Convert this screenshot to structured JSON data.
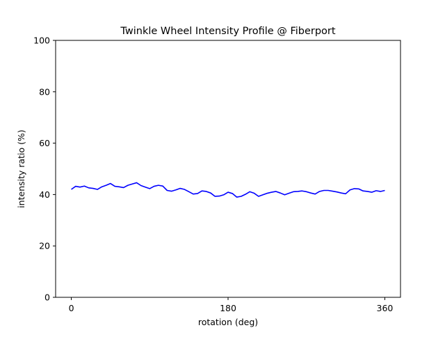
{
  "chart_data": {
    "type": "line",
    "title": "Twinkle Wheel Intensity Profile @ Fiberport",
    "xlabel": "rotation (deg)",
    "ylabel": "intensity ratio (%)",
    "xlim": [
      -18,
      378
    ],
    "ylim": [
      0,
      100
    ],
    "xticks": [
      0,
      180,
      360
    ],
    "xtick_labels": [
      "0",
      "180",
      "360"
    ],
    "yticks": [
      0,
      20,
      40,
      60,
      80,
      100
    ],
    "ytick_labels": [
      "0",
      "20",
      "40",
      "60",
      "80",
      "100"
    ],
    "grid": false,
    "series": [
      {
        "name": "intensity",
        "color": "#0000ff",
        "x": [
          0,
          5,
          10,
          15,
          20,
          25,
          30,
          35,
          40,
          45,
          50,
          55,
          60,
          65,
          70,
          75,
          80,
          85,
          90,
          95,
          100,
          105,
          110,
          115,
          120,
          125,
          130,
          135,
          140,
          145,
          150,
          155,
          160,
          165,
          170,
          175,
          180,
          185,
          190,
          195,
          200,
          205,
          210,
          215,
          220,
          225,
          230,
          235,
          240,
          245,
          250,
          255,
          260,
          265,
          270,
          275,
          280,
          285,
          290,
          295,
          300,
          305,
          310,
          315,
          320,
          325,
          330,
          335,
          340,
          345,
          350,
          355,
          360
        ],
        "values": [
          42.0,
          43.2,
          42.9,
          43.3,
          42.6,
          42.4,
          42.0,
          43.0,
          43.6,
          44.3,
          43.2,
          43.0,
          42.7,
          43.6,
          44.1,
          44.6,
          43.5,
          42.9,
          42.3,
          43.2,
          43.6,
          43.3,
          41.6,
          41.3,
          41.8,
          42.4,
          42.0,
          41.1,
          40.2,
          40.4,
          41.4,
          41.2,
          40.6,
          39.3,
          39.4,
          39.9,
          40.9,
          40.4,
          39.0,
          39.3,
          40.1,
          41.1,
          40.5,
          39.3,
          39.9,
          40.5,
          40.9,
          41.2,
          40.6,
          39.9,
          40.5,
          41.1,
          41.2,
          41.4,
          41.1,
          40.6,
          40.2,
          41.2,
          41.6,
          41.6,
          41.3,
          41.0,
          40.6,
          40.3,
          41.8,
          42.3,
          42.2,
          41.4,
          41.2,
          40.9,
          41.5,
          41.2,
          41.6
        ]
      }
    ]
  }
}
